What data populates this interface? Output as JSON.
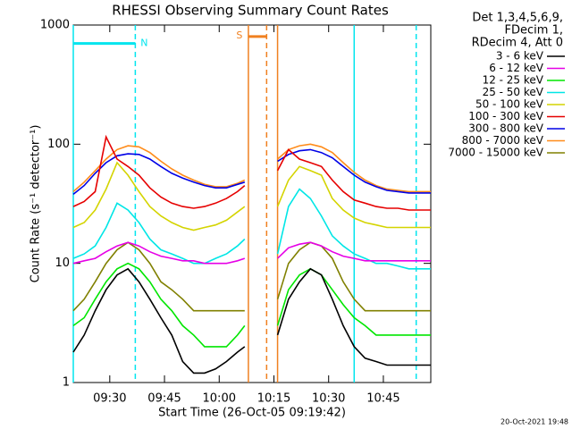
{
  "chart_data": {
    "type": "line",
    "title": "RHESSI Observing Summary Count Rates",
    "xlabel": "Start Time (26-Oct-05 09:19:42)",
    "ylabel": "Count Rate (s⁻¹ detector⁻¹)",
    "legend_header": [
      "Det 1,3,4,5,6,9,",
      "FDecim 1,",
      "RDecim 4, Att 0"
    ],
    "footer": "20-Oct-2021 19:48",
    "log_y": true,
    "xlim": [
      "09:20",
      "10:58"
    ],
    "xticks": [
      "09:30",
      "09:45",
      "10:00",
      "10:15",
      "10:30",
      "10:45"
    ],
    "ylim": [
      1,
      1000
    ],
    "yticks": [
      1,
      10,
      100,
      1000
    ],
    "markers": [
      {
        "x": "09:20",
        "color": "#00e5ee",
        "style": "solid"
      },
      {
        "x": "09:37",
        "color": "#00e5ee",
        "style": "dashed"
      },
      {
        "x": "10:37",
        "color": "#00e5ee",
        "style": "solid"
      },
      {
        "x": "10:54",
        "color": "#00e5ee",
        "style": "dashed"
      },
      {
        "x": "10:08",
        "color": "#f08020",
        "style": "solid"
      },
      {
        "x": "10:13",
        "color": "#f08020",
        "style": "dashed"
      },
      {
        "x": "10:16",
        "color": "#f08020",
        "style": "solid"
      }
    ],
    "flags": [
      {
        "label": "N",
        "start": "09:20",
        "end": "09:37",
        "level": 700,
        "color": "#00e5ee"
      },
      {
        "label": "S",
        "start": "10:08",
        "end": "10:13",
        "level": 800,
        "color": "#f08020"
      }
    ],
    "x": [
      "09:20",
      "09:23",
      "09:26",
      "09:29",
      "09:32",
      "09:35",
      "09:38",
      "09:41",
      "09:44",
      "09:47",
      "09:50",
      "09:53",
      "09:56",
      "09:59",
      "10:02",
      "10:05",
      "10:07",
      "10:11",
      "10:16",
      "10:19",
      "10:22",
      "10:25",
      "10:28",
      "10:31",
      "10:34",
      "10:37",
      "10:40",
      "10:43",
      "10:46",
      "10:49",
      "10:52",
      "10:55",
      "10:58"
    ],
    "series": [
      {
        "name": "3 - 6 keV",
        "color": "#000000",
        "values": [
          1.8,
          2.5,
          4,
          6,
          8,
          9,
          7,
          5,
          3.5,
          2.5,
          1.5,
          1.2,
          1.2,
          1.3,
          1.5,
          1.8,
          2,
          null,
          2.5,
          5,
          7,
          9,
          8,
          5,
          3,
          2,
          1.6,
          1.5,
          1.4,
          1.4,
          1.4,
          1.4,
          1.4
        ]
      },
      {
        "name": "6 - 12 keV",
        "color": "#e600e6",
        "values": [
          10,
          10.5,
          11,
          12.5,
          14,
          15,
          14,
          12.5,
          11.5,
          11,
          10.5,
          10.5,
          10,
          10,
          10,
          10.5,
          11,
          null,
          11,
          13.5,
          14.5,
          15,
          14,
          12.5,
          11.5,
          11,
          10.5,
          10.5,
          10.5,
          10.5,
          10.5,
          10.5,
          10.5
        ]
      },
      {
        "name": "12 - 25 keV",
        "color": "#00e600",
        "values": [
          3,
          3.5,
          5,
          7,
          9,
          10,
          9,
          7,
          5,
          4,
          3,
          2.5,
          2,
          2,
          2,
          2.5,
          3,
          null,
          3,
          6,
          8,
          9,
          8,
          6,
          4.5,
          3.5,
          3,
          2.5,
          2.5,
          2.5,
          2.5,
          2.5,
          2.5
        ]
      },
      {
        "name": "25 - 50 keV",
        "color": "#00e6e6",
        "values": [
          11,
          12,
          14,
          20,
          32,
          28,
          22,
          16,
          13,
          12,
          11,
          10,
          10,
          11,
          12,
          14,
          16,
          null,
          12,
          30,
          42,
          35,
          25,
          17,
          14,
          12,
          11,
          10,
          10,
          9.5,
          9,
          9,
          9
        ]
      },
      {
        "name": "50 - 100 keV",
        "color": "#d4d400",
        "values": [
          20,
          22,
          28,
          42,
          70,
          55,
          40,
          30,
          25,
          22,
          20,
          19,
          20,
          21,
          23,
          27,
          30,
          null,
          30,
          50,
          65,
          60,
          55,
          35,
          28,
          24,
          22,
          21,
          20,
          20,
          20,
          20,
          20
        ]
      },
      {
        "name": "100 - 300 keV",
        "color": "#e60000",
        "values": [
          30,
          33,
          40,
          115,
          75,
          65,
          55,
          43,
          36,
          32,
          30,
          29,
          30,
          32,
          35,
          40,
          45,
          null,
          60,
          90,
          75,
          70,
          65,
          50,
          40,
          34,
          32,
          30,
          29,
          29,
          28,
          28,
          28
        ]
      },
      {
        "name": "300 - 800 keV",
        "color": "#0000e6",
        "values": [
          38,
          45,
          57,
          70,
          80,
          83,
          82,
          75,
          65,
          57,
          52,
          48,
          45,
          43,
          43,
          46,
          48,
          null,
          72,
          82,
          88,
          90,
          85,
          77,
          65,
          55,
          48,
          44,
          41,
          40,
          39,
          39,
          39
        ]
      },
      {
        "name": "800 - 7000 keV",
        "color": "#ff8c1a",
        "values": [
          40,
          48,
          60,
          75,
          90,
          97,
          95,
          85,
          72,
          62,
          55,
          50,
          46,
          44,
          44,
          47,
          50,
          null,
          75,
          90,
          97,
          100,
          95,
          85,
          70,
          58,
          50,
          45,
          42,
          41,
          40,
          40,
          40
        ]
      },
      {
        "name": "7000 - 15000 keV",
        "color": "#808000",
        "values": [
          4,
          5,
          7,
          10,
          13,
          15,
          13,
          10,
          7,
          6,
          5,
          4,
          4,
          4,
          4,
          4,
          4,
          null,
          5,
          10,
          13,
          15,
          14,
          11,
          7,
          5,
          4,
          4,
          4,
          4,
          4,
          4,
          4
        ]
      }
    ]
  }
}
